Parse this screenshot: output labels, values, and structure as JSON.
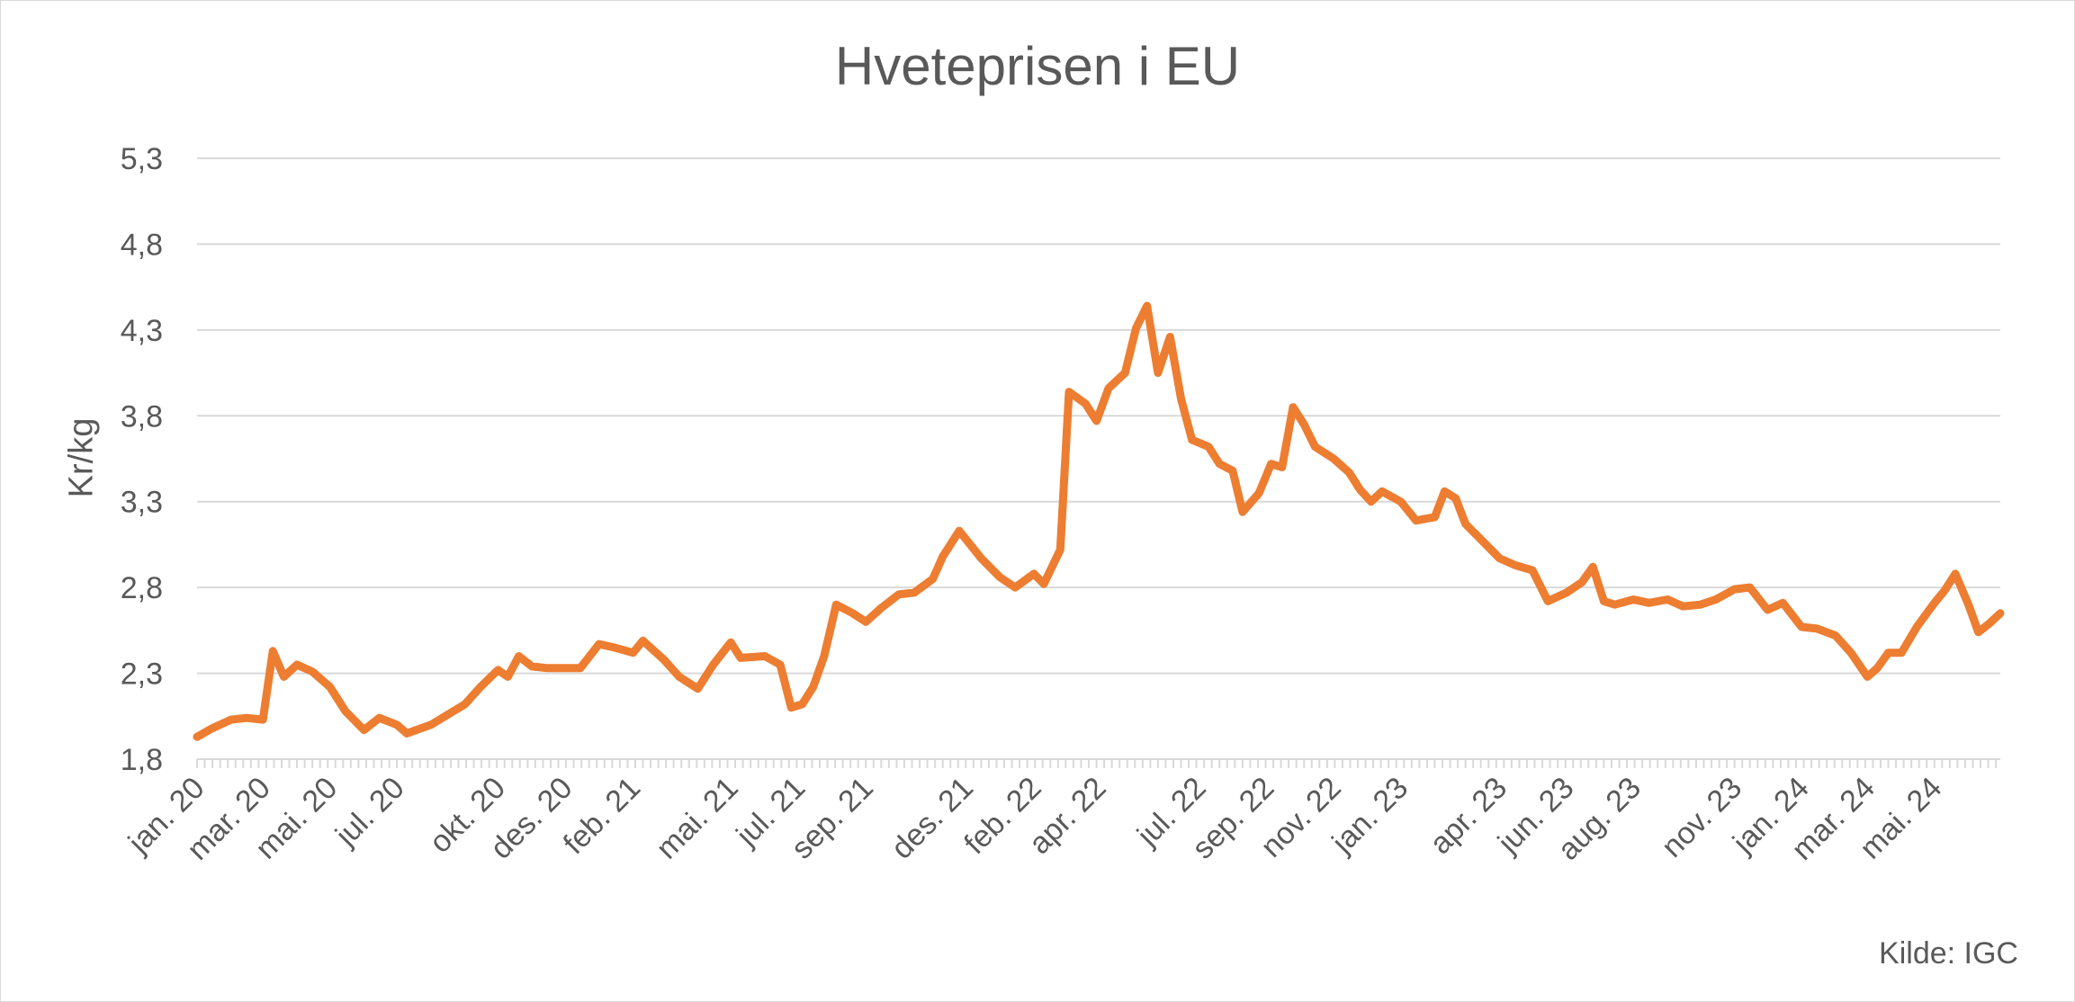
{
  "chart_data": {
    "type": "line",
    "title": "Hveteprisen i EU",
    "ylabel": "Kr/kg",
    "xlabel": "",
    "source": "Kilde: IGC",
    "ylim": [
      1.8,
      5.3
    ],
    "yticks": [
      "1,8",
      "2,3",
      "2,8",
      "3,3",
      "3,8",
      "4,3",
      "4,8",
      "5,3"
    ],
    "grid": true,
    "legend": "none",
    "x_start": "2020-01",
    "x_end": "2024-06",
    "x_tick_labels": [
      "jan. 20",
      "mar. 20",
      "mai. 20",
      "jul. 20",
      "okt. 20",
      "des. 20",
      "feb. 21",
      "mai. 21",
      "jul. 21",
      "sep. 21",
      "des. 21",
      "feb. 22",
      "apr. 22",
      "jul. 22",
      "sep. 22",
      "nov. 22",
      "jan. 23",
      "apr. 23",
      "jun. 23",
      "aug. 23",
      "nov. 23",
      "jan. 24",
      "mar. 24",
      "mai. 24"
    ],
    "series": [
      {
        "color": "#ED7D31",
        "points": [
          [
            "2020-01-01",
            1.93
          ],
          [
            "2020-01-15",
            1.98
          ],
          [
            "2020-02-01",
            2.03
          ],
          [
            "2020-02-15",
            2.04
          ],
          [
            "2020-03-01",
            2.03
          ],
          [
            "2020-03-10",
            2.43
          ],
          [
            "2020-03-20",
            2.28
          ],
          [
            "2020-04-01",
            2.35
          ],
          [
            "2020-04-15",
            2.31
          ],
          [
            "2020-05-01",
            2.22
          ],
          [
            "2020-05-15",
            2.08
          ],
          [
            "2020-06-01",
            1.97
          ],
          [
            "2020-06-15",
            2.04
          ],
          [
            "2020-07-01",
            2.0
          ],
          [
            "2020-07-10",
            1.95
          ],
          [
            "2020-08-01",
            2.0
          ],
          [
            "2020-09-01",
            2.12
          ],
          [
            "2020-09-15",
            2.22
          ],
          [
            "2020-10-01",
            2.32
          ],
          [
            "2020-10-10",
            2.28
          ],
          [
            "2020-10-20",
            2.4
          ],
          [
            "2020-11-01",
            2.34
          ],
          [
            "2020-11-15",
            2.33
          ],
          [
            "2020-12-01",
            2.33
          ],
          [
            "2020-12-15",
            2.33
          ],
          [
            "2021-01-01",
            2.47
          ],
          [
            "2021-01-15",
            2.45
          ],
          [
            "2021-02-01",
            2.42
          ],
          [
            "2021-02-10",
            2.49
          ],
          [
            "2021-03-01",
            2.38
          ],
          [
            "2021-03-15",
            2.28
          ],
          [
            "2021-04-01",
            2.21
          ],
          [
            "2021-04-15",
            2.35
          ],
          [
            "2021-05-01",
            2.48
          ],
          [
            "2021-05-10",
            2.39
          ],
          [
            "2021-06-01",
            2.4
          ],
          [
            "2021-06-15",
            2.35
          ],
          [
            "2021-06-25",
            2.1
          ],
          [
            "2021-07-05",
            2.12
          ],
          [
            "2021-07-15",
            2.22
          ],
          [
            "2021-07-25",
            2.4
          ],
          [
            "2021-08-05",
            2.7
          ],
          [
            "2021-08-20",
            2.65
          ],
          [
            "2021-09-01",
            2.6
          ],
          [
            "2021-09-15",
            2.68
          ],
          [
            "2021-10-01",
            2.76
          ],
          [
            "2021-10-15",
            2.77
          ],
          [
            "2021-11-01",
            2.85
          ],
          [
            "2021-11-10",
            2.98
          ],
          [
            "2021-11-25",
            3.13
          ],
          [
            "2021-12-05",
            3.05
          ],
          [
            "2021-12-15",
            2.97
          ],
          [
            "2022-01-01",
            2.86
          ],
          [
            "2022-01-15",
            2.8
          ],
          [
            "2022-02-01",
            2.88
          ],
          [
            "2022-02-10",
            2.82
          ],
          [
            "2022-02-25",
            3.02
          ],
          [
            "2022-03-05",
            3.94
          ],
          [
            "2022-03-20",
            3.87
          ],
          [
            "2022-03-30",
            3.77
          ],
          [
            "2022-04-10",
            3.96
          ],
          [
            "2022-04-25",
            4.05
          ],
          [
            "2022-05-05",
            4.31
          ],
          [
            "2022-05-15",
            4.44
          ],
          [
            "2022-05-25",
            4.05
          ],
          [
            "2022-06-05",
            4.26
          ],
          [
            "2022-06-15",
            3.9
          ],
          [
            "2022-06-25",
            3.66
          ],
          [
            "2022-07-10",
            3.62
          ],
          [
            "2022-07-20",
            3.52
          ],
          [
            "2022-08-01",
            3.48
          ],
          [
            "2022-08-10",
            3.24
          ],
          [
            "2022-08-25",
            3.35
          ],
          [
            "2022-09-05",
            3.52
          ],
          [
            "2022-09-15",
            3.5
          ],
          [
            "2022-09-25",
            3.85
          ],
          [
            "2022-10-05",
            3.75
          ],
          [
            "2022-10-15",
            3.62
          ],
          [
            "2022-11-01",
            3.55
          ],
          [
            "2022-11-15",
            3.47
          ],
          [
            "2022-11-25",
            3.37
          ],
          [
            "2022-12-05",
            3.3
          ],
          [
            "2022-12-15",
            3.36
          ],
          [
            "2023-01-01",
            3.3
          ],
          [
            "2023-01-15",
            3.19
          ],
          [
            "2023-02-01",
            3.21
          ],
          [
            "2023-02-10",
            3.36
          ],
          [
            "2023-02-20",
            3.32
          ],
          [
            "2023-03-01",
            3.17
          ],
          [
            "2023-03-15",
            3.08
          ],
          [
            "2023-04-01",
            2.97
          ],
          [
            "2023-04-15",
            2.93
          ],
          [
            "2023-05-01",
            2.9
          ],
          [
            "2023-05-15",
            2.72
          ],
          [
            "2023-06-01",
            2.77
          ],
          [
            "2023-06-15",
            2.83
          ],
          [
            "2023-06-25",
            2.92
          ],
          [
            "2023-07-05",
            2.72
          ],
          [
            "2023-07-15",
            2.7
          ],
          [
            "2023-08-01",
            2.73
          ],
          [
            "2023-08-15",
            2.71
          ],
          [
            "2023-09-01",
            2.73
          ],
          [
            "2023-09-15",
            2.69
          ],
          [
            "2023-10-01",
            2.7
          ],
          [
            "2023-10-15",
            2.73
          ],
          [
            "2023-11-01",
            2.79
          ],
          [
            "2023-11-15",
            2.8
          ],
          [
            "2023-12-01",
            2.67
          ],
          [
            "2023-12-15",
            2.71
          ],
          [
            "2024-01-01",
            2.57
          ],
          [
            "2024-01-15",
            2.56
          ],
          [
            "2024-02-01",
            2.52
          ],
          [
            "2024-02-15",
            2.42
          ],
          [
            "2024-03-01",
            2.28
          ],
          [
            "2024-03-10",
            2.33
          ],
          [
            "2024-03-20",
            2.42
          ],
          [
            "2024-04-01",
            2.42
          ],
          [
            "2024-04-15",
            2.57
          ],
          [
            "2024-05-01",
            2.71
          ],
          [
            "2024-05-10",
            2.78
          ],
          [
            "2024-05-20",
            2.88
          ],
          [
            "2024-06-01",
            2.7
          ],
          [
            "2024-06-10",
            2.54
          ],
          [
            "2024-06-20",
            2.59
          ],
          [
            "2024-06-30",
            2.65
          ]
        ]
      }
    ]
  }
}
